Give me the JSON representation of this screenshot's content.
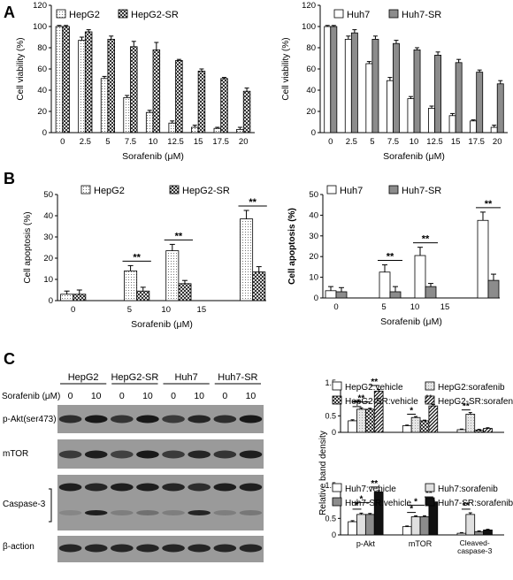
{
  "panels": {
    "a": "A",
    "b": "B",
    "c": "C"
  },
  "chart_data": [
    {
      "type": "bar",
      "id": "a1",
      "categories": [
        "0",
        "2.5",
        "5",
        "7.5",
        "10",
        "12.5",
        "15",
        "17.5",
        "20"
      ],
      "series": [
        {
          "name": "HepG2",
          "values": [
            100,
            87,
            51,
            33,
            19,
            9,
            5,
            4,
            3
          ],
          "errors": [
            1,
            3,
            2,
            2,
            2,
            2,
            2,
            1,
            2
          ]
        },
        {
          "name": "HepG2-SR",
          "values": [
            100,
            95,
            88,
            81,
            78,
            68,
            58,
            51,
            39
          ],
          "errors": [
            1,
            2,
            3,
            5,
            7,
            1,
            2,
            1,
            3
          ]
        }
      ],
      "xlabel": "Sorafenib (μM)",
      "ylabel": "Cell viability (%)",
      "ylim": [
        0,
        120
      ],
      "yticks": [
        0,
        20,
        40,
        60,
        80,
        100,
        120
      ],
      "legend": "top-left",
      "grid": false
    },
    {
      "type": "bar",
      "id": "a2",
      "categories": [
        "0",
        "2.5",
        "5",
        "7.5",
        "10",
        "12.5",
        "15",
        "17.5",
        "20"
      ],
      "series": [
        {
          "name": "Huh7",
          "values": [
            100,
            88,
            65,
            49,
            32,
            23,
            16,
            11,
            5
          ],
          "errors": [
            1,
            3,
            2,
            3,
            2,
            2,
            2,
            1,
            2
          ]
        },
        {
          "name": "Huh7-SR",
          "values": [
            100,
            94,
            88,
            84,
            78,
            73,
            66,
            57,
            46
          ],
          "errors": [
            1,
            3,
            3,
            3,
            2,
            3,
            3,
            2,
            3
          ]
        }
      ],
      "xlabel": "Sorafenib (μM)",
      "ylabel": "Cell viability (%)",
      "ylim": [
        0,
        120
      ],
      "yticks": [
        0,
        20,
        40,
        60,
        80,
        100,
        120
      ],
      "legend": "top",
      "grid": false
    },
    {
      "type": "bar",
      "id": "b1",
      "categories": [
        "0",
        "5",
        "10",
        "15"
      ],
      "series": [
        {
          "name": "HepG2",
          "values": [
            3,
            14,
            23.5,
            38.5
          ],
          "errors": [
            1.5,
            2.5,
            3,
            4
          ]
        },
        {
          "name": "HepG2-SR",
          "values": [
            3,
            4.5,
            8,
            13.5
          ],
          "errors": [
            2,
            1.8,
            1.5,
            2.5
          ]
        }
      ],
      "significance": [
        "**",
        "**",
        "**"
      ],
      "xlabel": "Sorafenib (μM)",
      "ylabel": "Cell apoptosis (%)",
      "ylim": [
        0,
        50
      ],
      "yticks": [
        0,
        10,
        20,
        30,
        40,
        50
      ],
      "legend": "top",
      "grid": false
    },
    {
      "type": "bar",
      "id": "b2",
      "categories": [
        "0",
        "5",
        "10",
        "15"
      ],
      "series": [
        {
          "name": "Huh7",
          "values": [
            3.5,
            12.5,
            20.5,
            37.5
          ],
          "errors": [
            2,
            3.5,
            4,
            4
          ]
        },
        {
          "name": "Huh7-SR",
          "values": [
            3,
            3,
            5.5,
            8.5
          ],
          "errors": [
            2,
            2.5,
            1.5,
            3
          ]
        }
      ],
      "significance": [
        "**",
        "**",
        "**"
      ],
      "xlabel": "Sorafenib (μM)",
      "ylabel": "Cell apoptosis (%)",
      "ylim": [
        0,
        50
      ],
      "yticks": [
        0,
        10,
        20,
        30,
        40,
        50
      ],
      "legend": "top",
      "grid": false
    },
    {
      "type": "bar",
      "id": "c1",
      "categories": [
        "p-Akt",
        "mTOR",
        "Cleaved-caspase-3"
      ],
      "series": [
        {
          "name": "HepG2:vehicle",
          "values": [
            0.35,
            0.2,
            0.08
          ],
          "errors": [
            0.03,
            0.02,
            0.02
          ]
        },
        {
          "name": "HepG2:sorafenib",
          "values": [
            0.7,
            0.45,
            0.55
          ],
          "errors": [
            0.04,
            0.03,
            0.05
          ]
        },
        {
          "name": "HepG2-SR:vehicle",
          "values": [
            0.7,
            0.35,
            0.07
          ],
          "errors": [
            0.03,
            0.02,
            0.02
          ]
        },
        {
          "name": "HepG2-SR:sorafenib",
          "values": [
            1.25,
            0.8,
            0.12
          ],
          "errors": [
            0.05,
            0.04,
            0.02
          ]
        }
      ],
      "significance": [
        "**",
        "**",
        "**",
        "*",
        "**",
        "**"
      ],
      "ylim": [
        0,
        1.5
      ],
      "yticks": [
        0,
        0.5,
        1,
        1.5
      ],
      "legend": "top",
      "grid": false
    },
    {
      "type": "bar",
      "id": "c2",
      "categories": [
        "p-Akt",
        "mTOR",
        "Cleaved-caspase-3"
      ],
      "series": [
        {
          "name": "Huh7:vehicle",
          "values": [
            0.4,
            0.25,
            0.05
          ],
          "errors": [
            0.03,
            0.02,
            0.02
          ]
        },
        {
          "name": "Huh7:sorafenib",
          "values": [
            0.62,
            0.55,
            0.62
          ],
          "errors": [
            0.04,
            0.03,
            0.05
          ]
        },
        {
          "name": "Huh7-SR:vehicle",
          "values": [
            0.62,
            0.55,
            0.1
          ],
          "errors": [
            0.03,
            0.03,
            0.02
          ]
        },
        {
          "name": "Huh7-SR:sorafenib",
          "values": [
            1.3,
            1.0,
            0.15
          ],
          "errors": [
            0.04,
            0.04,
            0.02
          ]
        }
      ],
      "significance": [
        "*",
        "*",
        "**",
        "*",
        "*",
        "**",
        "**"
      ],
      "ylim": [
        0,
        1.5
      ],
      "yticks": [
        0,
        0.5,
        1,
        1.5
      ],
      "legend": "top",
      "grid": false
    }
  ],
  "shared_ylabel_c": "Relative band density",
  "blot": {
    "cell_lines": [
      "HepG2",
      "HepG2-SR",
      "Huh7",
      "Huh7-SR"
    ],
    "treatment_label": "Sorafenib (μM)",
    "doses": [
      "0",
      "10",
      "0",
      "10",
      "0",
      "10",
      "0",
      "10"
    ],
    "rows": [
      "p-Akt(ser473)",
      "mTOR",
      "Caspase-3",
      "β-action"
    ]
  },
  "colors": {
    "dotted": "#f2f2f2",
    "gray": "#8c8c8c",
    "black": "#111111"
  }
}
